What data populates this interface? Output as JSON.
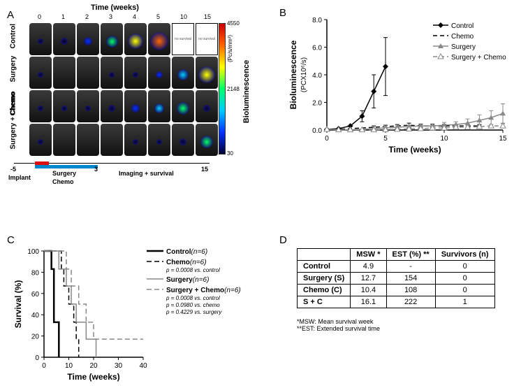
{
  "panelA": {
    "label": "A",
    "time_title": "Time (weeks)",
    "time_ticks": [
      0,
      1,
      2,
      3,
      4,
      5,
      10,
      15
    ],
    "row_labels": [
      "Control",
      "Surgery",
      "Chemo",
      "Surgery +\nChemo"
    ],
    "no_survival_text": "no survival",
    "no_survival_cols": [
      6,
      7
    ],
    "colorbar_title": "Bioluminescence",
    "colorbar_unit": "(Pc/s/mm²)",
    "colorbar_ticks": {
      "top": "4550",
      "mid": "2148",
      "bottom": "30"
    },
    "colorbar_gradient": [
      "#000033",
      "#0033ff",
      "#00ccff",
      "#00ff66",
      "#ffff00",
      "#ff6600",
      "#cc0000"
    ],
    "cell_bg": "#2a2a2a",
    "signal_intensity": {
      "Control": [
        0.05,
        0.15,
        0.3,
        0.5,
        0.7,
        0.95,
        null,
        null
      ],
      "Surgery": [
        0.05,
        0.0,
        0.0,
        0.05,
        0.1,
        0.2,
        0.45,
        0.8
      ],
      "Chemo": [
        0.05,
        0.05,
        0.1,
        0.15,
        0.25,
        0.4,
        0.55,
        0.15
      ],
      "Surgery +\nChemo": [
        0.05,
        0.0,
        0.0,
        0.0,
        0.05,
        0.08,
        0.15,
        0.55
      ]
    },
    "timeline": {
      "implant": "Implant",
      "implant_tick": "-5",
      "seg_surgery": {
        "label": "Surgery",
        "color": "#d11"
      },
      "seg_chemo": {
        "label": "Chemo",
        "color": "#08c"
      },
      "seg_chemo_end": "3",
      "seg_imaging": {
        "label": "Imaging + survival",
        "end": "15"
      }
    }
  },
  "panelB": {
    "label": "B",
    "ylabel_main": "Bioluminescence",
    "ylabel_unit": "(PCX10⁶/s)",
    "xlabel": "Time (weeks)",
    "ylim": [
      0,
      8
    ],
    "ytick_step": 2.0,
    "xlim": [
      0,
      15
    ],
    "xtick_step": 5,
    "legend": [
      {
        "name": "Control",
        "color": "#000",
        "dash": "",
        "marker": "diamond-filled"
      },
      {
        "name": "Chemo",
        "color": "#000",
        "dash": "6,4",
        "marker": ""
      },
      {
        "name": "Surgery",
        "color": "#888",
        "dash": "",
        "marker": "triangle-filled"
      },
      {
        "name": "Surgery + Chemo",
        "color": "#888",
        "dash": "6,4",
        "marker": "triangle-open"
      }
    ],
    "series": {
      "Control": {
        "x": [
          0,
          1,
          2,
          3,
          4,
          5
        ],
        "y": [
          0.05,
          0.1,
          0.3,
          1.0,
          2.8,
          4.6
        ],
        "err": [
          0,
          0,
          0,
          0.4,
          1.2,
          2.1
        ],
        "stroke": "#000",
        "dash": ""
      },
      "Chemo": {
        "x": [
          0,
          1,
          2,
          3,
          4,
          5,
          6,
          7,
          8,
          9,
          10,
          11,
          12,
          13
        ],
        "y": [
          0.05,
          0.05,
          0.1,
          0.15,
          0.2,
          0.25,
          0.3,
          0.35,
          0.3,
          0.3,
          0.3,
          0.3,
          0.3,
          0.3
        ],
        "err": [
          0,
          0,
          0,
          0,
          0.1,
          0.1,
          0.1,
          0.15,
          0.1,
          0.1,
          0.1,
          0.1,
          0.1,
          0.1
        ],
        "stroke": "#000",
        "dash": "6,4"
      },
      "Surgery": {
        "x": [
          0,
          1,
          2,
          3,
          4,
          5,
          6,
          7,
          8,
          9,
          10,
          11,
          12,
          13,
          14,
          15
        ],
        "y": [
          0.05,
          0.02,
          0.02,
          0.05,
          0.1,
          0.15,
          0.2,
          0.25,
          0.3,
          0.3,
          0.35,
          0.4,
          0.5,
          0.7,
          0.9,
          1.2
        ],
        "err": [
          0,
          0,
          0,
          0,
          0,
          0.1,
          0.1,
          0.1,
          0.15,
          0.15,
          0.2,
          0.2,
          0.3,
          0.4,
          0.5,
          0.7
        ],
        "stroke": "#888",
        "dash": ""
      },
      "Surgery + Chemo": {
        "x": [
          0,
          1,
          2,
          3,
          4,
          5,
          6,
          7,
          8,
          9,
          10,
          11,
          12,
          13,
          14,
          15
        ],
        "y": [
          0.05,
          0.02,
          0.02,
          0.02,
          0.02,
          0.03,
          0.05,
          0.08,
          0.1,
          0.15,
          0.15,
          0.2,
          0.2,
          0.25,
          0.3,
          0.3
        ],
        "err": [
          0,
          0,
          0,
          0,
          0,
          0,
          0,
          0.05,
          0.05,
          0.1,
          0.1,
          0.1,
          0.1,
          0.1,
          0.1,
          0.15
        ],
        "stroke": "#888",
        "dash": "6,4"
      }
    }
  },
  "panelC": {
    "label": "C",
    "ylabel": "Survival (%)",
    "xlabel": "Time (weeks)",
    "ylim": [
      0,
      100
    ],
    "ytick_step": 20,
    "xlim": [
      0,
      40
    ],
    "xtick_step": 10,
    "legend": [
      {
        "name": "Control",
        "n": "(n=6)",
        "stroke": "#000",
        "dash": "",
        "pvals": []
      },
      {
        "name": "Chemo",
        "n": "(n=6)",
        "stroke": "#000",
        "dash": "7,4",
        "pvals": [
          "p = 0.0008 vs. control"
        ]
      },
      {
        "name": "Surgery",
        "n": "(n=6)",
        "stroke": "#888",
        "dash": "",
        "pvals": []
      },
      {
        "name": "Surgery + Chemo",
        "n": "(n=6)",
        "stroke": "#888",
        "dash": "7,4",
        "pvals": [
          "p = 0.0008 vs. control",
          "p = 0.0980 vs. chemo",
          "p = 0.4229 vs. surgery"
        ]
      }
    ],
    "curves": {
      "Control": {
        "stroke": "#000",
        "dash": "",
        "width": 2.5,
        "steps": [
          [
            0,
            100
          ],
          [
            3,
            100
          ],
          [
            3,
            83
          ],
          [
            4,
            83
          ],
          [
            4,
            33
          ],
          [
            6,
            33
          ],
          [
            6,
            0
          ]
        ]
      },
      "Chemo": {
        "stroke": "#000",
        "dash": "7,4",
        "width": 1.5,
        "steps": [
          [
            0,
            100
          ],
          [
            7,
            100
          ],
          [
            7,
            83
          ],
          [
            8,
            83
          ],
          [
            8,
            67
          ],
          [
            10,
            67
          ],
          [
            10,
            50
          ],
          [
            12,
            50
          ],
          [
            12,
            33
          ],
          [
            13,
            33
          ],
          [
            13,
            17
          ],
          [
            14,
            17
          ],
          [
            14,
            0
          ]
        ]
      },
      "Surgery": {
        "stroke": "#888",
        "dash": "",
        "width": 1.5,
        "steps": [
          [
            0,
            100
          ],
          [
            6,
            100
          ],
          [
            6,
            83
          ],
          [
            9,
            83
          ],
          [
            9,
            67
          ],
          [
            11,
            67
          ],
          [
            11,
            50
          ],
          [
            13,
            50
          ],
          [
            13,
            33
          ],
          [
            17,
            33
          ],
          [
            17,
            17
          ],
          [
            21,
            17
          ],
          [
            21,
            0
          ]
        ]
      },
      "Surgery + Chemo": {
        "stroke": "#888",
        "dash": "7,4",
        "width": 1.5,
        "steps": [
          [
            0,
            100
          ],
          [
            9,
            100
          ],
          [
            9,
            83
          ],
          [
            11,
            83
          ],
          [
            11,
            67
          ],
          [
            14,
            67
          ],
          [
            14,
            50
          ],
          [
            17,
            50
          ],
          [
            17,
            33
          ],
          [
            20,
            33
          ],
          [
            20,
            17
          ],
          [
            40,
            17
          ]
        ]
      }
    }
  },
  "panelD": {
    "label": "D",
    "columns": [
      "",
      "MSW *",
      "EST (%) **",
      "Survivors (n)"
    ],
    "rows": [
      [
        "Control",
        "4.9",
        "-",
        "0"
      ],
      [
        "Surgery (S)",
        "12.7",
        "154",
        "0"
      ],
      [
        "Chemo (C)",
        "10.4",
        "108",
        "0"
      ],
      [
        "S + C",
        "16.1",
        "222",
        "1"
      ]
    ],
    "footnotes": [
      "*MSW: Mean survival week",
      "**EST: Extended survival time"
    ]
  }
}
